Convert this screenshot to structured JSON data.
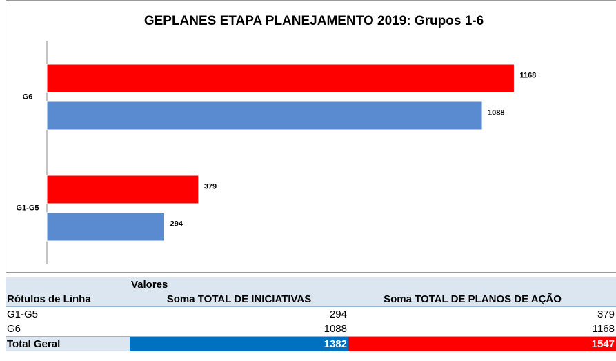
{
  "chart_data": {
    "type": "bar",
    "orientation": "horizontal",
    "title": "GEPLANES  ETAPA PLANEJAMENTO 2019: Grupos 1-6",
    "categories": [
      "G1-G5",
      "G6"
    ],
    "series": [
      {
        "color": "#ff0000",
        "values": [
          379,
          1168
        ]
      },
      {
        "color": "#5a8ad0",
        "values": [
          294,
          1088
        ]
      }
    ],
    "xlim": [
      0,
      1400
    ]
  },
  "table": {
    "group_header": "Valores",
    "columns": [
      "Rótulos de Linha",
      "Soma TOTAL DE INICIATIVAS",
      "Soma TOTAL DE PLANOS DE AÇÃO"
    ],
    "rows": [
      [
        "G1-G5",
        294,
        379
      ],
      [
        "G6",
        1088,
        1168
      ]
    ],
    "total": [
      "Total Geral",
      1382,
      1547
    ]
  }
}
